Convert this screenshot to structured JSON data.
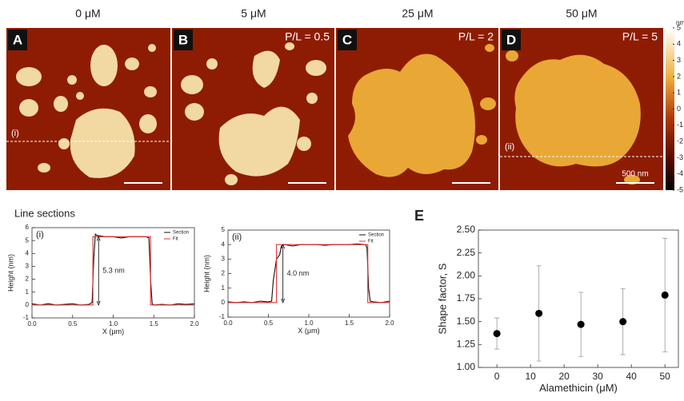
{
  "images": [
    {
      "title": "0 μM",
      "letter": "A",
      "annotation": "(i)"
    },
    {
      "title": "5 μM",
      "letter": "B",
      "ratio": "P/L = 0.5"
    },
    {
      "title": "25 μM",
      "letter": "C",
      "ratio": "P/L = 2"
    },
    {
      "title": "50 μM",
      "letter": "D",
      "ratio": "P/L = 5",
      "annotation": "(ii)",
      "scale_bar": "500 nm"
    }
  ],
  "colorbar": {
    "label": "nm",
    "lim": [
      -5,
      5
    ],
    "ticks": [
      5,
      4,
      3,
      2,
      1,
      0,
      -1,
      -2,
      -3,
      -4,
      -5
    ]
  },
  "line_sections_title": "Line sections",
  "chart_data": [
    {
      "type": "line",
      "label": "(i)",
      "annotation": "5.3 nm",
      "xlabel": "X (μm)",
      "ylabel": "Height (nm)",
      "xlim": [
        0,
        2
      ],
      "xticks": [
        {
          "value": 0,
          "label": "0.0"
        },
        {
          "value": 0.5,
          "label": "0.5"
        },
        {
          "value": 1,
          "label": "1.0"
        },
        {
          "value": 1.5,
          "label": "1.5"
        },
        {
          "value": 2,
          "label": "2.0"
        }
      ],
      "ylim": [
        -1,
        6
      ],
      "yticks": [
        -1,
        0,
        1,
        2,
        3,
        4,
        5,
        6
      ],
      "series": [
        {
          "name": "Section",
          "color": "#111111",
          "x": [
            0,
            0.1,
            0.2,
            0.3,
            0.4,
            0.5,
            0.6,
            0.7,
            0.74,
            0.76,
            0.78,
            0.8,
            0.9,
            1.0,
            1.1,
            1.2,
            1.3,
            1.4,
            1.44,
            1.46,
            1.48,
            1.5,
            1.6,
            1.7,
            1.8,
            1.9,
            2.0
          ],
          "values": [
            0.1,
            0.0,
            0.1,
            0.0,
            0.05,
            0.1,
            0.0,
            0.05,
            0.2,
            3.5,
            5.5,
            5.4,
            5.3,
            5.3,
            5.2,
            5.3,
            5.3,
            5.3,
            5.2,
            2.0,
            0.1,
            0.0,
            0.05,
            0.0,
            0.1,
            0.05,
            0.1
          ]
        },
        {
          "name": "Fit",
          "color": "#e53030",
          "x": [
            0,
            0.75,
            0.75,
            1.46,
            1.46,
            2.0
          ],
          "values": [
            0,
            0,
            5.3,
            5.3,
            0,
            0
          ]
        }
      ]
    },
    {
      "type": "line",
      "label": "(ii)",
      "annotation": "4.0 nm",
      "xlabel": "X (μm)",
      "ylabel": "Height (nm)",
      "xlim": [
        0,
        2
      ],
      "xticks": [
        {
          "value": 0,
          "label": "0.0"
        },
        {
          "value": 0.5,
          "label": "0.5"
        },
        {
          "value": 1,
          "label": "1.0"
        },
        {
          "value": 1.5,
          "label": "1.5"
        },
        {
          "value": 2,
          "label": "2.0"
        }
      ],
      "ylim": [
        -1,
        5
      ],
      "yticks": [
        -1,
        0,
        1,
        2,
        3,
        4,
        5
      ],
      "series": [
        {
          "name": "Section",
          "color": "#111111",
          "x": [
            0,
            0.1,
            0.2,
            0.3,
            0.4,
            0.5,
            0.54,
            0.56,
            0.6,
            0.64,
            0.66,
            0.7,
            0.8,
            0.9,
            1.0,
            1.1,
            1.2,
            1.3,
            1.4,
            1.5,
            1.6,
            1.7,
            1.72,
            1.74,
            1.76,
            1.8,
            1.9,
            2.0
          ],
          "values": [
            0.05,
            0.0,
            0.05,
            0.0,
            0.1,
            0.05,
            0.1,
            1.5,
            3.0,
            3.3,
            3.9,
            4.0,
            3.9,
            4.0,
            4.0,
            4.0,
            3.95,
            4.0,
            4.0,
            4.0,
            4.05,
            4.0,
            3.8,
            1.0,
            0.1,
            0.05,
            0.0,
            0.1
          ]
        },
        {
          "name": "Fit",
          "color": "#e53030",
          "x": [
            0,
            0.6,
            0.6,
            1.73,
            1.73,
            2.0
          ],
          "values": [
            0,
            0,
            4.0,
            4.0,
            0,
            0
          ]
        }
      ]
    },
    {
      "type": "scatter",
      "label": "E",
      "xlabel": "Alamethicin (μM)",
      "ylabel": "Shape factor, S",
      "xlim": [
        -5.5,
        54
      ],
      "xticks": [
        0,
        10,
        20,
        30,
        40,
        50
      ],
      "ylim": [
        1,
        2.5
      ],
      "yticks": [
        {
          "value": 1,
          "label": "1.00"
        },
        {
          "value": 1.25,
          "label": "1.25"
        },
        {
          "value": 1.5,
          "label": "1.50"
        },
        {
          "value": 1.75,
          "label": "1.75"
        },
        {
          "value": 2,
          "label": "2.00"
        },
        {
          "value": 2.25,
          "label": "2.25"
        },
        {
          "value": 2.5,
          "label": "2.50"
        }
      ],
      "series": [
        {
          "color": "#000000",
          "x": [
            0,
            12.5,
            25,
            37.5,
            50
          ],
          "values": [
            1.37,
            1.59,
            1.47,
            1.5,
            1.79
          ],
          "errors": [
            0.17,
            0.52,
            0.35,
            0.36,
            0.62
          ]
        }
      ]
    }
  ]
}
